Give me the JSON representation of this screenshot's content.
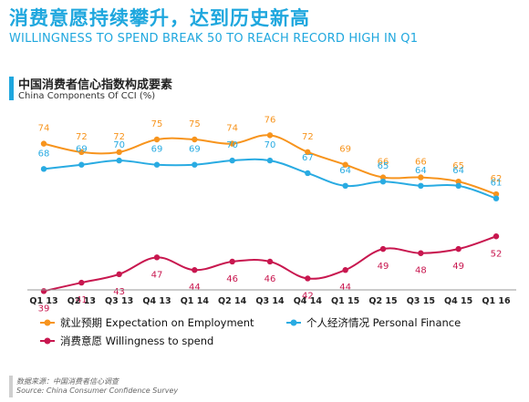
{
  "header": {
    "title": "消费意愿持续攀升，达到历史新高",
    "subtitle": "WILLINGNESS TO SPEND BREAK 50 TO REACH RECORD HIGH IN Q1"
  },
  "chart_data": {
    "type": "line",
    "title": "中国消费者信心指数构成要素",
    "subtitle": "China Components Of CCI (%)",
    "categories": [
      "Q1 13",
      "Q2 13",
      "Q3 13",
      "Q4 13",
      "Q1 14",
      "Q2 14",
      "Q3 14",
      "Q4 14",
      "Q1 15",
      "Q2 15",
      "Q3 15",
      "Q4 15",
      "Q1 16"
    ],
    "series": [
      {
        "name": "就业预期 Expectation on Employment",
        "color": "#f7941d",
        "values": [
          74,
          72,
          72,
          75,
          75,
          74,
          76,
          72,
          69,
          66,
          66,
          65,
          62
        ]
      },
      {
        "name": "个人经济情况 Personal Finance",
        "color": "#29abe2",
        "values": [
          68,
          69,
          70,
          69,
          69,
          70,
          70,
          67,
          64,
          65,
          64,
          64,
          61
        ]
      },
      {
        "name": "消费意愿 Willingness to spend",
        "color": "#c8174f",
        "values": [
          39,
          41,
          43,
          47,
          44,
          46,
          46,
          42,
          44,
          49,
          48,
          49,
          52
        ]
      }
    ],
    "grid": false,
    "legend_position": "bottom"
  },
  "source": {
    "line1": "数据来源：中国消费者信心调查",
    "line2": "Source: China Consumer Confidence Survey"
  }
}
